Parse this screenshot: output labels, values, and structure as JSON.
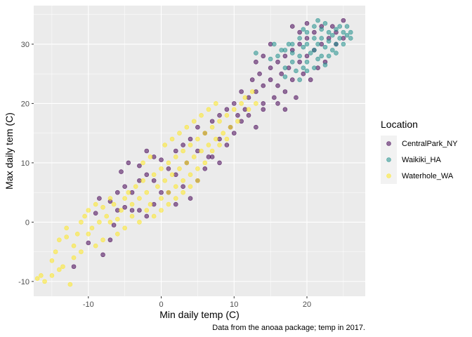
{
  "chart_data": {
    "type": "scatter",
    "title": "",
    "xlabel": "Min daily temp (C)",
    "ylabel": "Max daily tem (C)",
    "caption": "Data from the anoaa package; temp in 2017.",
    "xlim": [
      -17.5,
      28
    ],
    "ylim": [
      -12.5,
      36.5
    ],
    "x_ticks": [
      -10,
      0,
      10,
      20
    ],
    "y_ticks": [
      -10,
      0,
      10,
      20,
      30
    ],
    "grid": true,
    "legend": {
      "title": "Location",
      "position": "right"
    },
    "series": [
      {
        "name": "CentralPark_NY",
        "color": "#440154",
        "points": [
          [
            -12,
            -7.5
          ],
          [
            -10,
            -3.5
          ],
          [
            -8,
            -5.5
          ],
          [
            -7,
            -3
          ],
          [
            -6.5,
            -0.5
          ],
          [
            -6,
            2
          ],
          [
            -5,
            2.5
          ],
          [
            -4,
            2
          ],
          [
            -9,
            1.5
          ],
          [
            -8.5,
            4
          ],
          [
            -7,
            3.5
          ],
          [
            -6,
            5
          ],
          [
            -5,
            6
          ],
          [
            -3,
            7
          ],
          [
            -2,
            8
          ],
          [
            -1,
            7
          ],
          [
            -5.5,
            8.5
          ],
          [
            -4.5,
            10
          ],
          [
            -3,
            9.5
          ],
          [
            -2,
            12
          ],
          [
            -1,
            11
          ],
          [
            0,
            10.5
          ],
          [
            1,
            9
          ],
          [
            2,
            8
          ],
          [
            2,
            12
          ],
          [
            3,
            13
          ],
          [
            3.5,
            10
          ],
          [
            4,
            14
          ],
          [
            5,
            12
          ],
          [
            5,
            16
          ],
          [
            6,
            15
          ],
          [
            6.5,
            11
          ],
          [
            7,
            17
          ],
          [
            8,
            18
          ],
          [
            8,
            14
          ],
          [
            9,
            19
          ],
          [
            9.5,
            16
          ],
          [
            10,
            20
          ],
          [
            10.5,
            18
          ],
          [
            11,
            22
          ],
          [
            11.5,
            19
          ],
          [
            12,
            21
          ],
          [
            12.5,
            24
          ],
          [
            13,
            22
          ],
          [
            13.5,
            25
          ],
          [
            14,
            23
          ],
          [
            14,
            20
          ],
          [
            15,
            26
          ],
          [
            15,
            24
          ],
          [
            15.5,
            21
          ],
          [
            16,
            27
          ],
          [
            16,
            23
          ],
          [
            16.5,
            25
          ],
          [
            17,
            28
          ],
          [
            17,
            22
          ],
          [
            17.5,
            26
          ],
          [
            18,
            29
          ],
          [
            18,
            24
          ],
          [
            18.5,
            21
          ],
          [
            19,
            27
          ],
          [
            19,
            30
          ],
          [
            19.5,
            25
          ],
          [
            20,
            31
          ],
          [
            20,
            28
          ],
          [
            20.5,
            24
          ],
          [
            21,
            32
          ],
          [
            21,
            29
          ],
          [
            21.5,
            26
          ],
          [
            22,
            33
          ],
          [
            22,
            30
          ],
          [
            22.5,
            27
          ],
          [
            23,
            31
          ],
          [
            23.5,
            33
          ],
          [
            24,
            32
          ],
          [
            24,
            30
          ],
          [
            25,
            34
          ],
          [
            25,
            31
          ],
          [
            19,
            32
          ],
          [
            18,
            33
          ],
          [
            20,
            33.5
          ],
          [
            15,
            30
          ],
          [
            14,
            28
          ],
          [
            13,
            27
          ],
          [
            1,
            5
          ],
          [
            2,
            3
          ],
          [
            3,
            6
          ],
          [
            4,
            4
          ],
          [
            5,
            7
          ],
          [
            0,
            5
          ],
          [
            -1,
            3
          ],
          [
            -2,
            1
          ],
          [
            -3,
            2
          ],
          [
            -4,
            5
          ],
          [
            6,
            9
          ],
          [
            7,
            11
          ],
          [
            8,
            10
          ],
          [
            9,
            13
          ],
          [
            10,
            15
          ],
          [
            11,
            17
          ],
          [
            12,
            18
          ],
          [
            13,
            16
          ],
          [
            14,
            19
          ],
          [
            16,
            20
          ],
          [
            17,
            19
          ]
        ]
      },
      {
        "name": "Waikiki_HA",
        "color": "#21908C",
        "points": [
          [
            13,
            28.5
          ],
          [
            15,
            27.5
          ],
          [
            16,
            28
          ],
          [
            17,
            26
          ],
          [
            17,
            29
          ],
          [
            18,
            27
          ],
          [
            18,
            30
          ],
          [
            18.5,
            25.5
          ],
          [
            19,
            28
          ],
          [
            19,
            31
          ],
          [
            19.5,
            26
          ],
          [
            19.5,
            29.5
          ],
          [
            20,
            27
          ],
          [
            20,
            30
          ],
          [
            20,
            32
          ],
          [
            20.5,
            28.5
          ],
          [
            21,
            26
          ],
          [
            21,
            29
          ],
          [
            21,
            31
          ],
          [
            21,
            33
          ],
          [
            21.5,
            27.5
          ],
          [
            21.5,
            30
          ],
          [
            22,
            28
          ],
          [
            22,
            31
          ],
          [
            22,
            32.5
          ],
          [
            22.5,
            26.5
          ],
          [
            22.5,
            29.5
          ],
          [
            23,
            28
          ],
          [
            23,
            30.5
          ],
          [
            23,
            32
          ],
          [
            23.5,
            29
          ],
          [
            23.5,
            31.5
          ],
          [
            24,
            30
          ],
          [
            24,
            32.5
          ],
          [
            24,
            28.5
          ],
          [
            24.5,
            31
          ],
          [
            25,
            32
          ],
          [
            25,
            30
          ],
          [
            25.5,
            33
          ],
          [
            26,
            32
          ],
          [
            26,
            31
          ],
          [
            25.5,
            31.5
          ],
          [
            24.5,
            33
          ],
          [
            22.5,
            33.5
          ],
          [
            21.5,
            34
          ],
          [
            19.5,
            32.5
          ],
          [
            20,
            25.5
          ],
          [
            18,
            28.5
          ],
          [
            17.5,
            30
          ],
          [
            16.5,
            29
          ],
          [
            15.5,
            30
          ],
          [
            19,
            24
          ],
          [
            17,
            24.5
          ]
        ]
      },
      {
        "name": "Waterhole_WA",
        "color": "#FDE725",
        "points": [
          [
            -17,
            -9.5
          ],
          [
            -16.5,
            -9
          ],
          [
            -16,
            -10
          ],
          [
            -15,
            -6.5
          ],
          [
            -14.5,
            -5
          ],
          [
            -14,
            -3
          ],
          [
            -13.5,
            -7.5
          ],
          [
            -13,
            -1
          ],
          [
            -12.5,
            -10.5
          ],
          [
            -12,
            -4
          ],
          [
            -11.5,
            -2
          ],
          [
            -11,
            0
          ],
          [
            -10.5,
            1
          ],
          [
            -10,
            2
          ],
          [
            -9.5,
            -1
          ],
          [
            -9,
            3
          ],
          [
            -8.5,
            0
          ],
          [
            -8,
            2.5
          ],
          [
            -7.5,
            1
          ],
          [
            -7,
            4
          ],
          [
            -6.5,
            3
          ],
          [
            -6,
            0.5
          ],
          [
            -5.5,
            2
          ],
          [
            -5,
            4
          ],
          [
            -4.5,
            5
          ],
          [
            -4,
            3
          ],
          [
            -3.5,
            6
          ],
          [
            -3,
            4
          ],
          [
            -2.5,
            7
          ],
          [
            -2,
            5
          ],
          [
            -1.5,
            3
          ],
          [
            -1,
            8
          ],
          [
            -0.5,
            6
          ],
          [
            0,
            4
          ],
          [
            0,
            9
          ],
          [
            0.5,
            7
          ],
          [
            1,
            5
          ],
          [
            1,
            10
          ],
          [
            1.5,
            8
          ],
          [
            2,
            6
          ],
          [
            2,
            11
          ],
          [
            2.5,
            9
          ],
          [
            3,
            12
          ],
          [
            3,
            7
          ],
          [
            3.5,
            10
          ],
          [
            4,
            13
          ],
          [
            4,
            8
          ],
          [
            4.5,
            11
          ],
          [
            5,
            14
          ],
          [
            5,
            9
          ],
          [
            5.5,
            12
          ],
          [
            6,
            15
          ],
          [
            6,
            10
          ],
          [
            6.5,
            13
          ],
          [
            7,
            16
          ],
          [
            7,
            12
          ],
          [
            7.5,
            14
          ],
          [
            8,
            17
          ],
          [
            8,
            13
          ],
          [
            8.5,
            15
          ],
          [
            9,
            18
          ],
          [
            9,
            14
          ],
          [
            9.5,
            16
          ],
          [
            10,
            19
          ],
          [
            10.5,
            17
          ],
          [
            11,
            20
          ],
          [
            11.5,
            21
          ],
          [
            12,
            19
          ],
          [
            12.5,
            22
          ],
          [
            13,
            20
          ],
          [
            -2,
            2
          ],
          [
            -3,
            0
          ],
          [
            -4,
            1
          ],
          [
            -5,
            -1
          ],
          [
            -6,
            -2
          ],
          [
            -7,
            0
          ],
          [
            1,
            3
          ],
          [
            2,
            4
          ],
          [
            3,
            5
          ],
          [
            4,
            6
          ],
          [
            5,
            7
          ],
          [
            -1,
            1
          ],
          [
            0,
            2
          ],
          [
            -8,
            -3
          ],
          [
            -9,
            -4
          ],
          [
            -10,
            -2
          ],
          [
            -11,
            -5
          ],
          [
            -12,
            -6
          ],
          [
            -13,
            -2.5
          ],
          [
            -14,
            -8
          ],
          [
            -15,
            -9
          ],
          [
            -2.5,
            10
          ],
          [
            -1.5,
            11
          ],
          [
            0.5,
            13
          ],
          [
            1.5,
            14
          ],
          [
            2.5,
            15
          ],
          [
            3.5,
            16
          ],
          [
            4.5,
            17
          ],
          [
            5.5,
            18
          ],
          [
            6.5,
            19
          ],
          [
            7.5,
            20
          ]
        ]
      }
    ]
  }
}
